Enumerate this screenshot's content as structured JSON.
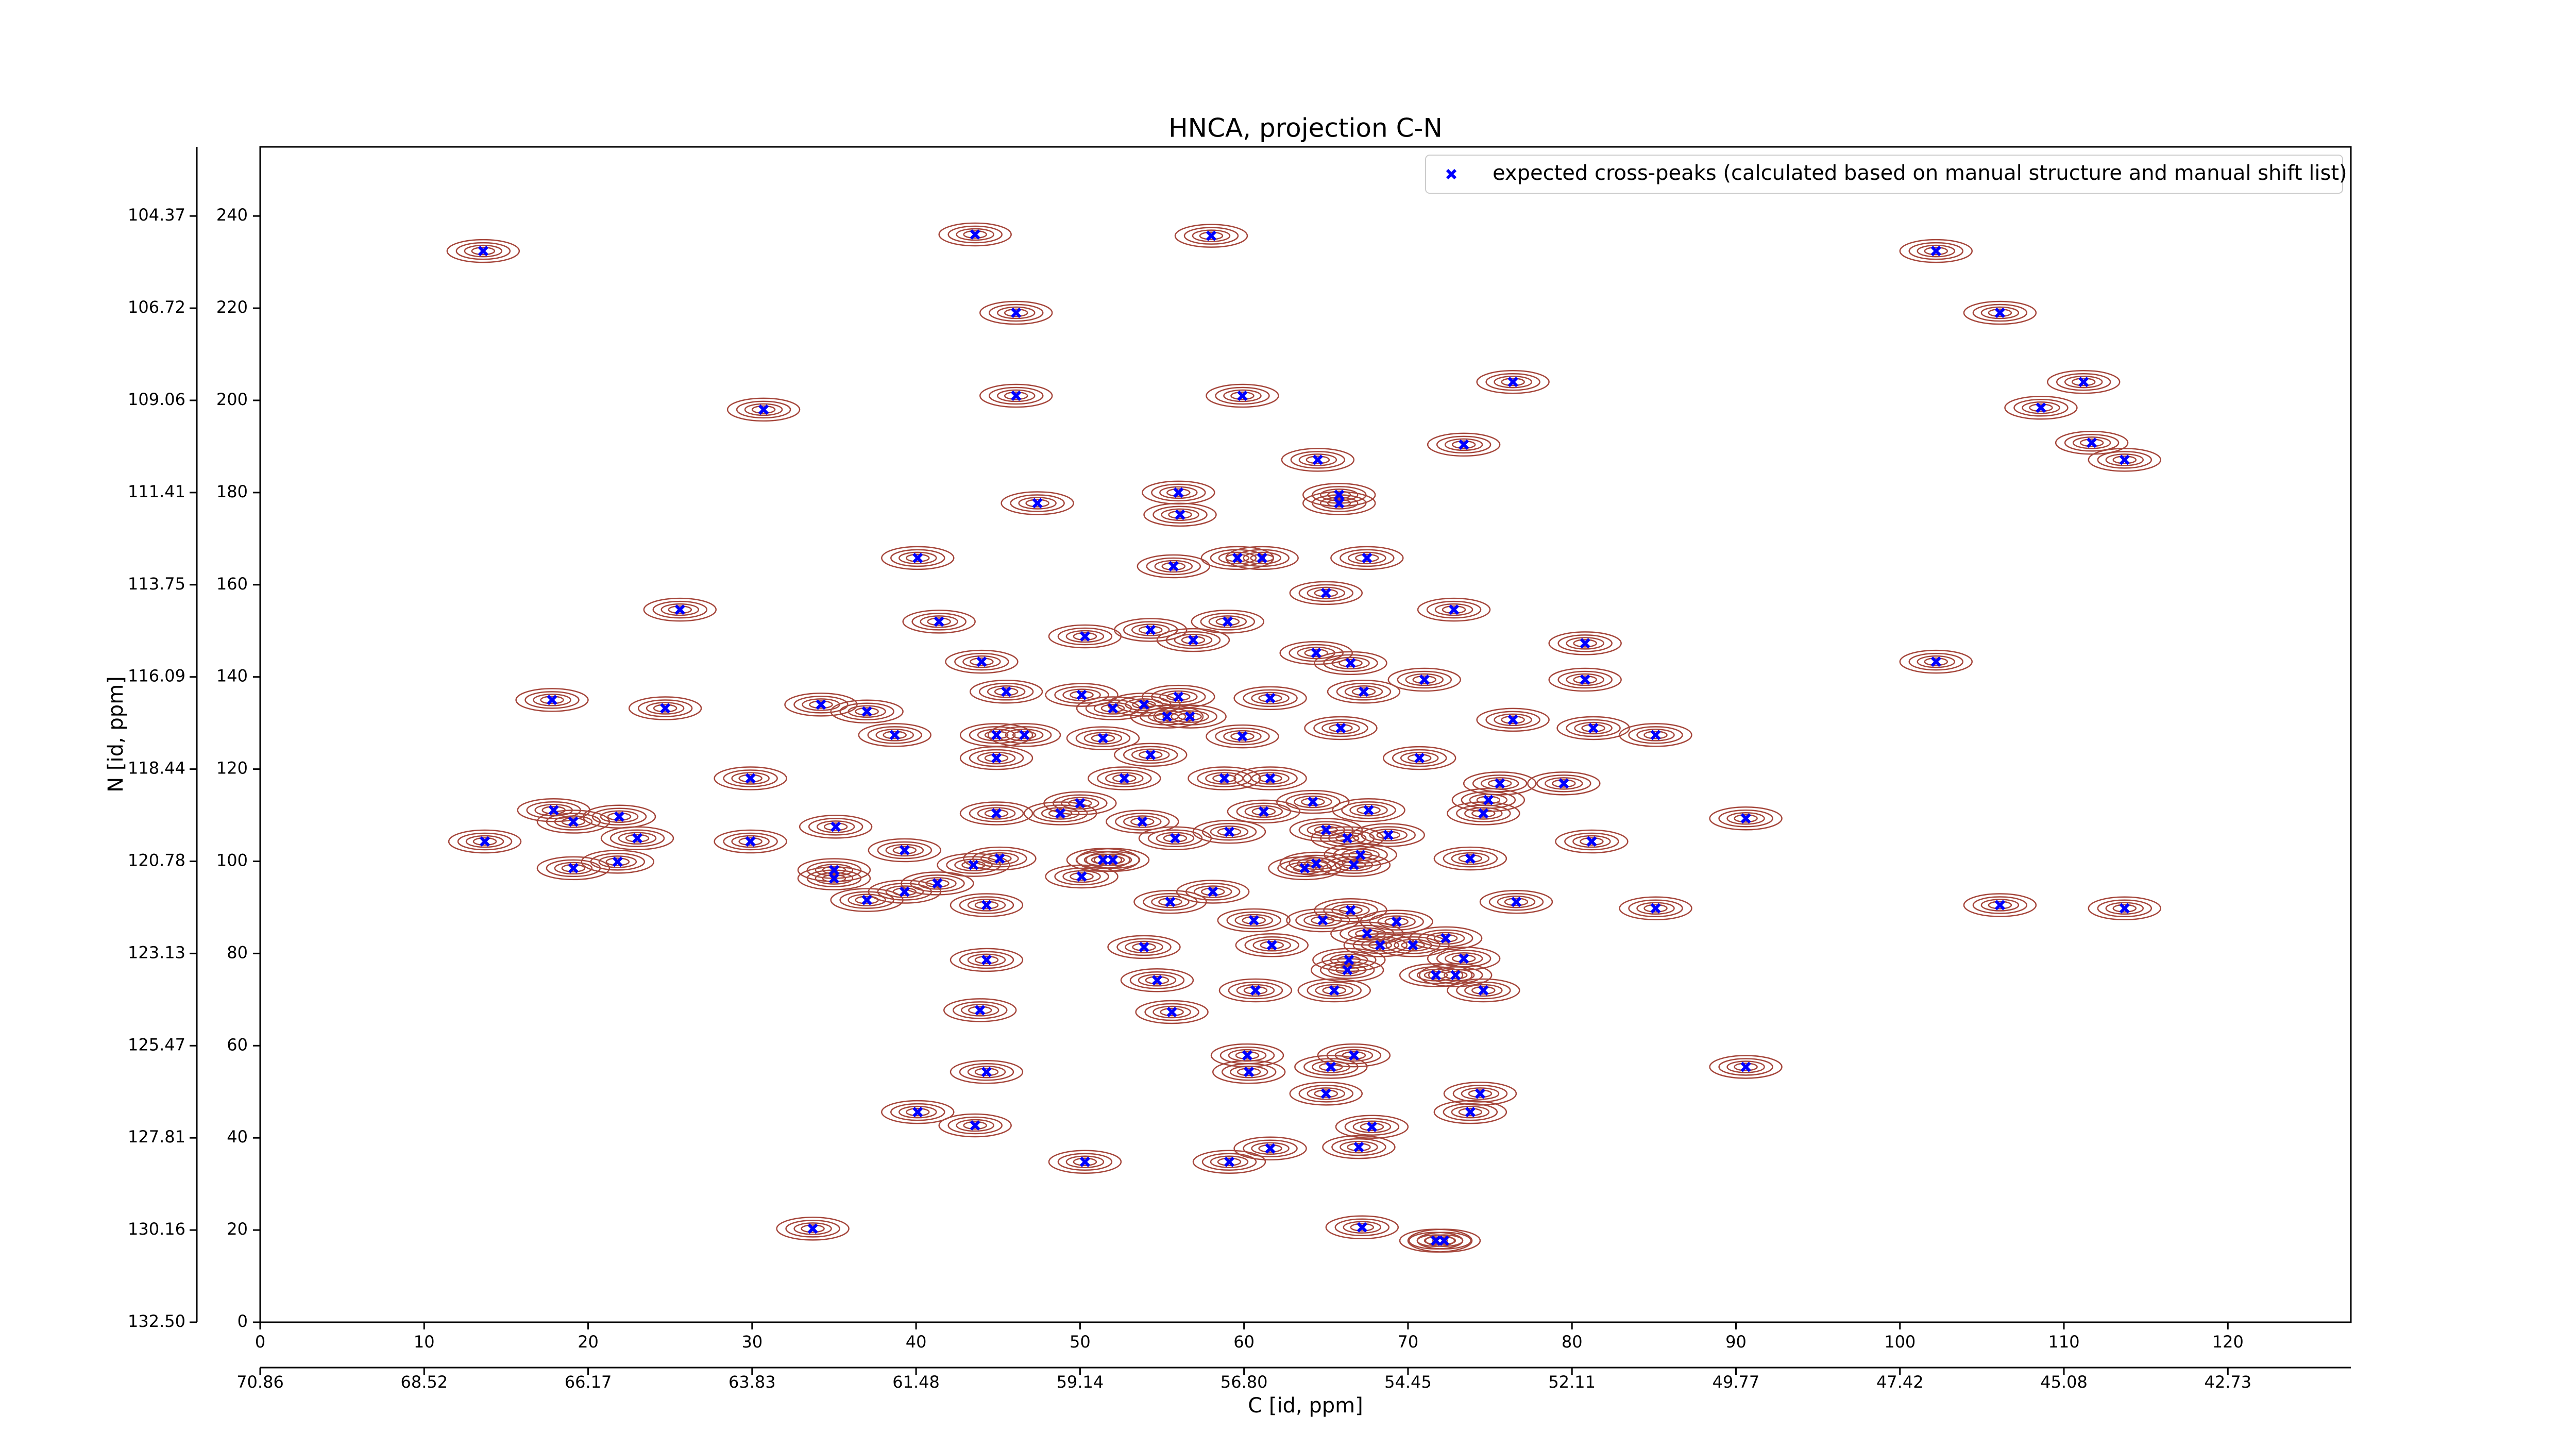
{
  "chart_data": {
    "type": "scatter",
    "title": "HNCA, projection C-N",
    "xlabel": "C [id, ppm]",
    "ylabel": "N [id, ppm]",
    "xlim": [
      0,
      127.5
    ],
    "ylim": [
      0,
      255
    ],
    "xticks": [
      0,
      10,
      20,
      30,
      40,
      50,
      60,
      70,
      80,
      90,
      100,
      110,
      120
    ],
    "yticks": [
      0,
      20,
      40,
      60,
      80,
      100,
      120,
      140,
      160,
      180,
      200,
      220,
      240
    ],
    "x2ticks": [
      {
        "value": 0,
        "label": "70.86"
      },
      {
        "value": 10,
        "label": "68.52"
      },
      {
        "value": 20,
        "label": "66.17"
      },
      {
        "value": 30,
        "label": "63.83"
      },
      {
        "value": 40,
        "label": "61.48"
      },
      {
        "value": 50,
        "label": "59.14"
      },
      {
        "value": 60,
        "label": "56.80"
      },
      {
        "value": 70,
        "label": "54.45"
      },
      {
        "value": 80,
        "label": "52.11"
      },
      {
        "value": 90,
        "label": "49.77"
      },
      {
        "value": 100,
        "label": "47.42"
      },
      {
        "value": 110,
        "label": "45.08"
      },
      {
        "value": 120,
        "label": "42.73"
      }
    ],
    "y2ticks": [
      {
        "value": 0,
        "label": "132.50"
      },
      {
        "value": 20,
        "label": "130.16"
      },
      {
        "value": 40,
        "label": "127.81"
      },
      {
        "value": 60,
        "label": "125.47"
      },
      {
        "value": 80,
        "label": "123.13"
      },
      {
        "value": 100,
        "label": "120.78"
      },
      {
        "value": 120,
        "label": "118.44"
      },
      {
        "value": 140,
        "label": "116.09"
      },
      {
        "value": 160,
        "label": "113.75"
      },
      {
        "value": 180,
        "label": "111.41"
      },
      {
        "value": 200,
        "label": "109.06"
      },
      {
        "value": 220,
        "label": "106.72"
      },
      {
        "value": 240,
        "label": "104.37"
      }
    ],
    "legend": "upper right",
    "series": [
      {
        "name": "expected cross-peaks (calculated based on manual structure and manual shift list)",
        "color": "#0000ff",
        "x": [
          13.6,
          43.6,
          58,
          102.2,
          46.1,
          106.1,
          46.1,
          59.9,
          76.4,
          111.2,
          30.7,
          108.6,
          73.4,
          64.5,
          111.7,
          113.7,
          56,
          65.8,
          65.8,
          47.4,
          56.1,
          40.1,
          59.6,
          61.1,
          67.5,
          55.7,
          25.6,
          41.4,
          65,
          72.8,
          50.3,
          54.3,
          59,
          56.9,
          44,
          102.2,
          17.8,
          24.7,
          34.2,
          37,
          38.7,
          45.5,
          46.6,
          50.1,
          52,
          53.9,
          56,
          56.7,
          55.3,
          51.4,
          61.6,
          64.4,
          66.5,
          67.3,
          71,
          80.8,
          80.8,
          76.4,
          81.3,
          85.1,
          44.9,
          59.9,
          65.9,
          44.9,
          54.3,
          58.8,
          61.6,
          70.7,
          29.9,
          52.7,
          75.6,
          79.5,
          17.9,
          19.1,
          13.7,
          21.9,
          23,
          21.8,
          19.1,
          29.9,
          35.1,
          35,
          35,
          39.3,
          37,
          39.3,
          41.3,
          43.5,
          44.9,
          45.1,
          44.3,
          48.8,
          50,
          51.4,
          52,
          50.1,
          53.8,
          55.8,
          59.1,
          61.2,
          64.2,
          65,
          67.6,
          66.3,
          64.4,
          66.7,
          68.8,
          67.1,
          63.7,
          55.5,
          58.1,
          73.8,
          74.6,
          74.9,
          76.6,
          81.2,
          90.6,
          85.1,
          106.1,
          113.7,
          53.9,
          60.6,
          61.7,
          64.8,
          66.5,
          67.5,
          68.3,
          70.3,
          72.3,
          73.4,
          69.3,
          66.4,
          44.3,
          54.7,
          60.7,
          65.5,
          71.7,
          72.9,
          66.3,
          74.6,
          43.9,
          55.6,
          60.2,
          66.7,
          65.3,
          60.3,
          44.3,
          90.6,
          65,
          74.4,
          73.8,
          40.1,
          43.6,
          67.8,
          67,
          61.6,
          59.1,
          50.3,
          33.7,
          67.2,
          71.7,
          72.2
        ],
        "values": [
          232.4,
          236,
          235.7,
          232.4,
          219,
          219,
          201,
          201,
          204,
          204,
          198,
          198.4,
          190.4,
          187.1,
          190.8,
          187.1,
          180,
          179.5,
          177.7,
          177.7,
          175.2,
          165.8,
          165.8,
          165.8,
          165.8,
          164,
          154.6,
          152,
          158.2,
          154.6,
          148.8,
          150.2,
          152,
          148,
          143.3,
          143.3,
          135,
          133.2,
          134,
          132.5,
          127.4,
          136.8,
          127.4,
          136.1,
          133.2,
          134,
          135.7,
          131.4,
          131.4,
          126.7,
          135.4,
          145.2,
          143,
          136.8,
          139.4,
          147.3,
          139.4,
          130.7,
          128.9,
          127.4,
          127.4,
          127.1,
          128.9,
          122.4,
          123.1,
          118,
          118,
          122.4,
          118,
          118,
          116.9,
          116.9,
          111.1,
          108.6,
          104.3,
          109.7,
          105,
          99.9,
          98.5,
          104.3,
          107.5,
          98.1,
          96.3,
          102.4,
          91.6,
          93.4,
          95.2,
          99.2,
          110.4,
          100.6,
          90.5,
          110.4,
          112.6,
          100.3,
          100.3,
          96.7,
          108.6,
          105,
          106.4,
          110.8,
          112.9,
          106.8,
          111.1,
          105,
          99.5,
          99.2,
          105.7,
          101.4,
          98.5,
          91.2,
          93.4,
          100.6,
          110.4,
          113.3,
          91.2,
          104.3,
          109.3,
          89.8,
          90.5,
          89.8,
          81.4,
          87.2,
          81.8,
          87.2,
          89.4,
          84.3,
          81.8,
          81.8,
          83.3,
          78.9,
          86.9,
          78.6,
          78.6,
          74.2,
          72,
          72,
          75.3,
          75.3,
          76.4,
          72,
          67.7,
          67.3,
          57.9,
          57.9,
          55.4,
          54.3,
          54.3,
          55.4,
          49.6,
          49.6,
          45.6,
          45.6,
          42.7,
          42.4,
          38,
          37.7,
          34.8,
          34.8,
          20.3,
          20.6,
          17.7,
          17.7
        ]
      }
    ]
  }
}
